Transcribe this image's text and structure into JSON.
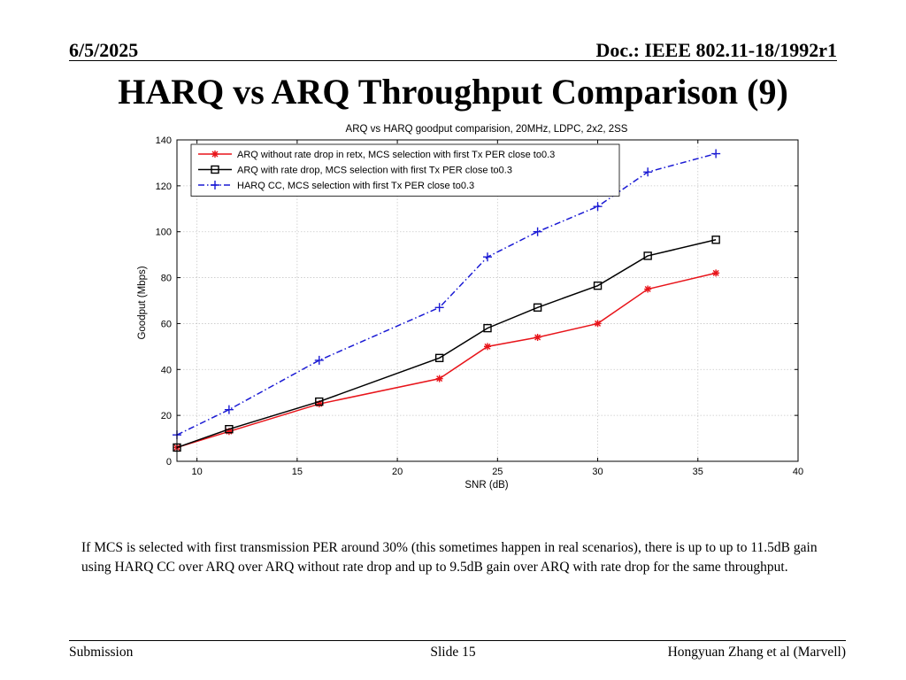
{
  "header": {
    "date": "6/5/2025",
    "doc": "Doc.: IEEE 802.11-18/1992r1"
  },
  "slide_title": "HARQ vs ARQ Throughput Comparison (9)",
  "chart_data": {
    "type": "line",
    "title": "ARQ vs HARQ goodput comparision, 20MHz, LDPC, 2x2, 2SS",
    "xlabel": "SNR (dB)",
    "ylabel": "Goodput (Mbps)",
    "xlim": [
      9,
      40
    ],
    "ylim": [
      0,
      140
    ],
    "xticks": [
      10,
      15,
      20,
      25,
      30,
      35,
      40
    ],
    "yticks": [
      0,
      20,
      40,
      60,
      80,
      100,
      120,
      140
    ],
    "grid": true,
    "legend_position": "top-left",
    "series": [
      {
        "name": "ARQ without rate drop in retx, MCS selection with first Tx PER close to0.3",
        "color": "#e8141a",
        "marker": "star",
        "dash": "solid",
        "x": [
          9,
          11.6,
          16.1,
          22.1,
          24.5,
          27,
          30,
          32.5,
          35.9
        ],
        "y": [
          6,
          13,
          25,
          36,
          50,
          54,
          60,
          75,
          82
        ]
      },
      {
        "name": "ARQ with rate drop, MCS selection with first Tx PER close to0.3",
        "color": "#000000",
        "marker": "square",
        "dash": "solid",
        "x": [
          9,
          11.6,
          16.1,
          22.1,
          24.5,
          27,
          30,
          32.5,
          35.9
        ],
        "y": [
          6,
          14,
          26,
          45,
          58,
          67,
          76.5,
          89.5,
          96.5
        ]
      },
      {
        "name": "HARQ CC, MCS selection with first Tx PER close to0.3",
        "color": "#1a1ad4",
        "marker": "plus",
        "dash": "dashdot",
        "x": [
          9,
          11.6,
          16.1,
          22.1,
          24.5,
          27,
          30,
          32.5,
          35.9
        ],
        "y": [
          11.5,
          22.5,
          44,
          67,
          89,
          100,
          111,
          126,
          134
        ]
      }
    ]
  },
  "body_text": "If MCS is selected with first transmission PER around 30% (this sometimes happen in real scenarios), there is up to up to 11.5dB gain using HARQ CC over ARQ over ARQ without rate drop and up to 9.5dB gain over ARQ with rate drop for the same throughput.",
  "footer": {
    "left": "Submission",
    "center": "Slide 15",
    "right": "Hongyuan Zhang et al (Marvell)"
  }
}
